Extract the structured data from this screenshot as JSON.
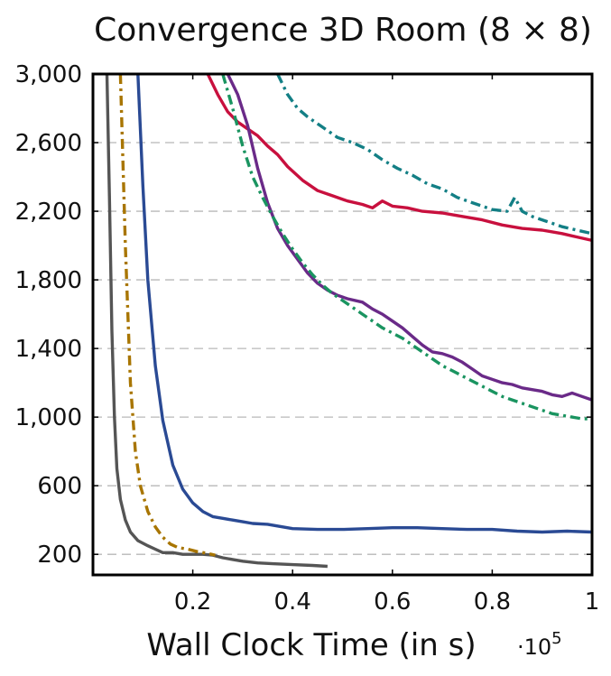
{
  "chart_data": {
    "type": "line",
    "title": "Convergence 3D Room (8 × 8)",
    "xlabel": "Wall Clock Time (in s)",
    "ylabel": "",
    "x_scale_label": "·10",
    "x_scale_exponent": "5",
    "xlim": [
      0,
      1
    ],
    "ylim": [
      80,
      3000
    ],
    "xticks": [
      0.2,
      0.4,
      0.6,
      0.8,
      1
    ],
    "xtick_labels": [
      "0.2",
      "0.4",
      "0.6",
      "0.8",
      "1"
    ],
    "yticks": [
      200,
      600,
      1000,
      1400,
      1800,
      2200,
      2600,
      3000
    ],
    "ytick_labels": [
      "200",
      "600",
      "1,000",
      "1,400",
      "1,800",
      "2,200",
      "2,600",
      "3,000"
    ],
    "grid": "horizontal-dashed",
    "legend": "none",
    "series": [
      {
        "color": "#555555",
        "dash": "solid",
        "points": [
          [
            0.028,
            3000
          ],
          [
            0.033,
            2300
          ],
          [
            0.038,
            1500
          ],
          [
            0.043,
            1000
          ],
          [
            0.048,
            700
          ],
          [
            0.055,
            520
          ],
          [
            0.065,
            400
          ],
          [
            0.075,
            330
          ],
          [
            0.09,
            280
          ],
          [
            0.11,
            250
          ],
          [
            0.125,
            230
          ],
          [
            0.14,
            210
          ],
          [
            0.16,
            210
          ],
          [
            0.18,
            200
          ],
          [
            0.2,
            200
          ],
          [
            0.22,
            200
          ],
          [
            0.24,
            195
          ],
          [
            0.26,
            180
          ],
          [
            0.28,
            170
          ],
          [
            0.3,
            160
          ],
          [
            0.33,
            150
          ],
          [
            0.36,
            145
          ],
          [
            0.4,
            140
          ],
          [
            0.44,
            135
          ],
          [
            0.47,
            130
          ]
        ]
      },
      {
        "color": "#a87500",
        "dash": "dashdot",
        "points": [
          [
            0.055,
            3000
          ],
          [
            0.065,
            2000
          ],
          [
            0.075,
            1200
          ],
          [
            0.085,
            800
          ],
          [
            0.095,
            600
          ],
          [
            0.11,
            450
          ],
          [
            0.125,
            360
          ],
          [
            0.14,
            300
          ],
          [
            0.155,
            260
          ],
          [
            0.17,
            240
          ],
          [
            0.19,
            230
          ],
          [
            0.21,
            215
          ],
          [
            0.23,
            205
          ],
          [
            0.245,
            195
          ]
        ]
      },
      {
        "color": "#2a4a94",
        "dash": "solid",
        "points": [
          [
            0.09,
            3000
          ],
          [
            0.1,
            2350
          ],
          [
            0.11,
            1800
          ],
          [
            0.125,
            1300
          ],
          [
            0.14,
            980
          ],
          [
            0.16,
            720
          ],
          [
            0.18,
            580
          ],
          [
            0.2,
            500
          ],
          [
            0.22,
            450
          ],
          [
            0.24,
            420
          ],
          [
            0.26,
            410
          ],
          [
            0.28,
            400
          ],
          [
            0.3,
            390
          ],
          [
            0.32,
            380
          ],
          [
            0.35,
            375
          ],
          [
            0.4,
            350
          ],
          [
            0.45,
            345
          ],
          [
            0.5,
            345
          ],
          [
            0.55,
            350
          ],
          [
            0.6,
            355
          ],
          [
            0.65,
            355
          ],
          [
            0.7,
            350
          ],
          [
            0.75,
            345
          ],
          [
            0.8,
            345
          ],
          [
            0.85,
            335
          ],
          [
            0.9,
            330
          ],
          [
            0.95,
            335
          ],
          [
            1,
            330
          ]
        ]
      },
      {
        "color": "#c8103e",
        "dash": "solid",
        "points": [
          [
            0.23,
            3000
          ],
          [
            0.25,
            2880
          ],
          [
            0.27,
            2780
          ],
          [
            0.29,
            2720
          ],
          [
            0.31,
            2680
          ],
          [
            0.33,
            2640
          ],
          [
            0.35,
            2580
          ],
          [
            0.37,
            2530
          ],
          [
            0.39,
            2460
          ],
          [
            0.42,
            2380
          ],
          [
            0.45,
            2320
          ],
          [
            0.48,
            2290
          ],
          [
            0.51,
            2260
          ],
          [
            0.54,
            2240
          ],
          [
            0.56,
            2220
          ],
          [
            0.58,
            2260
          ],
          [
            0.6,
            2230
          ],
          [
            0.63,
            2220
          ],
          [
            0.66,
            2200
          ],
          [
            0.7,
            2190
          ],
          [
            0.74,
            2170
          ],
          [
            0.78,
            2150
          ],
          [
            0.82,
            2120
          ],
          [
            0.86,
            2100
          ],
          [
            0.9,
            2090
          ],
          [
            0.94,
            2070
          ],
          [
            0.97,
            2050
          ],
          [
            1,
            2030
          ]
        ]
      },
      {
        "color": "#6a2a88",
        "dash": "solid",
        "points": [
          [
            0.27,
            3000
          ],
          [
            0.29,
            2880
          ],
          [
            0.31,
            2700
          ],
          [
            0.33,
            2450
          ],
          [
            0.35,
            2250
          ],
          [
            0.37,
            2100
          ],
          [
            0.39,
            2000
          ],
          [
            0.41,
            1920
          ],
          [
            0.43,
            1840
          ],
          [
            0.45,
            1780
          ],
          [
            0.47,
            1740
          ],
          [
            0.49,
            1710
          ],
          [
            0.51,
            1690
          ],
          [
            0.54,
            1670
          ],
          [
            0.56,
            1630
          ],
          [
            0.58,
            1600
          ],
          [
            0.6,
            1560
          ],
          [
            0.62,
            1520
          ],
          [
            0.64,
            1470
          ],
          [
            0.66,
            1420
          ],
          [
            0.68,
            1380
          ],
          [
            0.7,
            1370
          ],
          [
            0.72,
            1350
          ],
          [
            0.74,
            1320
          ],
          [
            0.76,
            1280
          ],
          [
            0.78,
            1240
          ],
          [
            0.8,
            1220
          ],
          [
            0.82,
            1200
          ],
          [
            0.84,
            1190
          ],
          [
            0.86,
            1170
          ],
          [
            0.88,
            1160
          ],
          [
            0.9,
            1150
          ],
          [
            0.92,
            1130
          ],
          [
            0.94,
            1120
          ],
          [
            0.96,
            1140
          ],
          [
            0.98,
            1120
          ],
          [
            1,
            1100
          ]
        ]
      },
      {
        "color": "#1a9460",
        "dash": "dashdot",
        "points": [
          [
            0.26,
            3000
          ],
          [
            0.28,
            2800
          ],
          [
            0.3,
            2580
          ],
          [
            0.32,
            2400
          ],
          [
            0.34,
            2280
          ],
          [
            0.36,
            2170
          ],
          [
            0.38,
            2070
          ],
          [
            0.4,
            1980
          ],
          [
            0.42,
            1900
          ],
          [
            0.44,
            1830
          ],
          [
            0.46,
            1770
          ],
          [
            0.48,
            1720
          ],
          [
            0.5,
            1680
          ],
          [
            0.52,
            1640
          ],
          [
            0.54,
            1600
          ],
          [
            0.56,
            1560
          ],
          [
            0.58,
            1520
          ],
          [
            0.6,
            1490
          ],
          [
            0.62,
            1460
          ],
          [
            0.64,
            1420
          ],
          [
            0.66,
            1380
          ],
          [
            0.68,
            1340
          ],
          [
            0.7,
            1300
          ],
          [
            0.72,
            1270
          ],
          [
            0.74,
            1240
          ],
          [
            0.76,
            1210
          ],
          [
            0.78,
            1180
          ],
          [
            0.8,
            1150
          ],
          [
            0.82,
            1120
          ],
          [
            0.84,
            1100
          ],
          [
            0.86,
            1080
          ],
          [
            0.88,
            1060
          ],
          [
            0.9,
            1040
          ],
          [
            0.92,
            1020
          ],
          [
            0.94,
            1010
          ],
          [
            0.96,
            1000
          ],
          [
            0.98,
            990
          ],
          [
            1,
            990
          ]
        ]
      },
      {
        "color": "#137f85",
        "dash": "dashdot",
        "points": [
          [
            0.37,
            3000
          ],
          [
            0.39,
            2880
          ],
          [
            0.41,
            2800
          ],
          [
            0.43,
            2750
          ],
          [
            0.46,
            2690
          ],
          [
            0.49,
            2630
          ],
          [
            0.52,
            2600
          ],
          [
            0.55,
            2560
          ],
          [
            0.58,
            2500
          ],
          [
            0.61,
            2450
          ],
          [
            0.64,
            2410
          ],
          [
            0.67,
            2360
          ],
          [
            0.7,
            2330
          ],
          [
            0.73,
            2280
          ],
          [
            0.76,
            2250
          ],
          [
            0.78,
            2230
          ],
          [
            0.8,
            2210
          ],
          [
            0.83,
            2200
          ],
          [
            0.845,
            2280
          ],
          [
            0.86,
            2200
          ],
          [
            0.88,
            2170
          ],
          [
            0.91,
            2140
          ],
          [
            0.94,
            2110
          ],
          [
            0.97,
            2090
          ],
          [
            1,
            2070
          ]
        ]
      }
    ]
  }
}
